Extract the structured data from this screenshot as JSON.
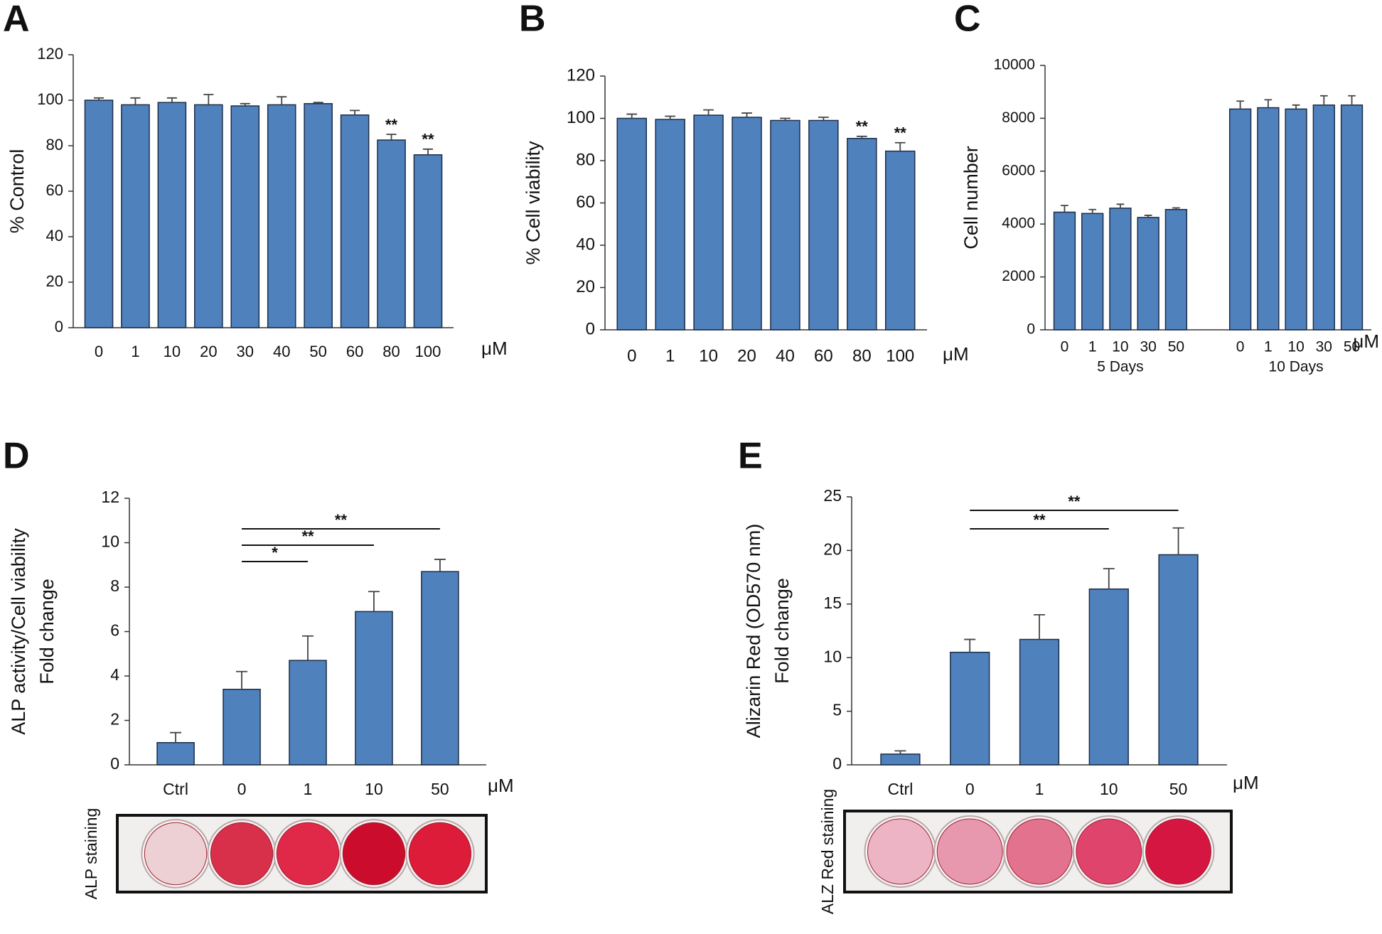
{
  "chart_data": [
    {
      "type": "bar",
      "panel": "A",
      "y_label": "% Control",
      "unit": "μM",
      "color": "#4f81bd",
      "categories": [
        "0",
        "1",
        "10",
        "20",
        "30",
        "40",
        "50",
        "60",
        "80",
        "100"
      ],
      "values": [
        100,
        98,
        99,
        98,
        97.5,
        98,
        98.5,
        93.5,
        82.5,
        76
      ],
      "errors": [
        1,
        3,
        2,
        4.5,
        1,
        3.5,
        0.5,
        2,
        2.5,
        2.5
      ],
      "annotations": [
        null,
        null,
        null,
        null,
        null,
        null,
        null,
        null,
        "**",
        "**"
      ],
      "ylim": [
        0,
        120
      ],
      "yticks": [
        0,
        20,
        40,
        60,
        80,
        100,
        120
      ]
    },
    {
      "type": "bar",
      "panel": "B",
      "y_label": "% Cell viability",
      "unit": "μM",
      "color": "#4f81bd",
      "categories": [
        "0",
        "1",
        "10",
        "20",
        "40",
        "60",
        "80",
        "100"
      ],
      "values": [
        100,
        99.5,
        101.5,
        100.5,
        99,
        99,
        90.5,
        84.5
      ],
      "errors": [
        2,
        1.5,
        2.5,
        2,
        1,
        1.5,
        1,
        4
      ],
      "annotations": [
        null,
        null,
        null,
        null,
        null,
        null,
        "**",
        "**"
      ],
      "ylim": [
        0,
        120
      ],
      "yticks": [
        0,
        20,
        40,
        60,
        80,
        100,
        120
      ]
    },
    {
      "type": "grouped_bar",
      "panel": "C",
      "y_label": "Cell number",
      "unit": "μM",
      "color": "#4f81bd",
      "groups": [
        {
          "name": "5 Days",
          "categories": [
            "0",
            "1",
            "10",
            "30",
            "50"
          ],
          "values": [
            4450,
            4400,
            4600,
            4250,
            4550
          ],
          "errors": [
            250,
            150,
            150,
            80,
            60
          ]
        },
        {
          "name": "10 Days",
          "categories": [
            "0",
            "1",
            "10",
            "30",
            "50"
          ],
          "values": [
            8350,
            8400,
            8350,
            8500,
            8500
          ],
          "errors": [
            300,
            300,
            150,
            350,
            350
          ]
        }
      ],
      "ylim": [
        0,
        10000
      ],
      "yticks": [
        0,
        2000,
        4000,
        6000,
        8000,
        10000
      ]
    },
    {
      "type": "bar",
      "panel": "D",
      "y_label": [
        "ALP activity/Cell viability",
        "Fold change"
      ],
      "unit": "μM",
      "color": "#4f81bd",
      "categories": [
        "Ctrl",
        "0",
        "1",
        "10",
        "50"
      ],
      "values": [
        1,
        3.4,
        4.7,
        6.9,
        8.7
      ],
      "errors": [
        0.45,
        0.8,
        1.1,
        0.9,
        0.55
      ],
      "comparisons": [
        {
          "from": "0",
          "to": "1",
          "label": "*"
        },
        {
          "from": "0",
          "to": "10",
          "label": "**"
        },
        {
          "from": "0",
          "to": "50",
          "label": "**"
        }
      ],
      "staining_label": "ALP staining",
      "ylim": [
        0,
        12
      ],
      "yticks": [
        0,
        2,
        4,
        6,
        8,
        10,
        12
      ]
    },
    {
      "type": "bar",
      "panel": "E",
      "y_label": [
        "Alizarin Red (OD570 nm)",
        "Fold change"
      ],
      "unit": "μM",
      "color": "#4f81bd",
      "categories": [
        "Ctrl",
        "0",
        "1",
        "10",
        "50"
      ],
      "values": [
        1,
        10.5,
        11.7,
        16.4,
        19.6
      ],
      "errors": [
        0.3,
        1.2,
        2.3,
        1.9,
        2.5
      ],
      "comparisons": [
        {
          "from": "0",
          "to": "10",
          "label": "**"
        },
        {
          "from": "0",
          "to": "50",
          "label": "**"
        }
      ],
      "staining_label": "ALZ Red staining",
      "ylim": [
        0,
        25
      ],
      "yticks": [
        0,
        5,
        10,
        15,
        20,
        25
      ]
    }
  ]
}
